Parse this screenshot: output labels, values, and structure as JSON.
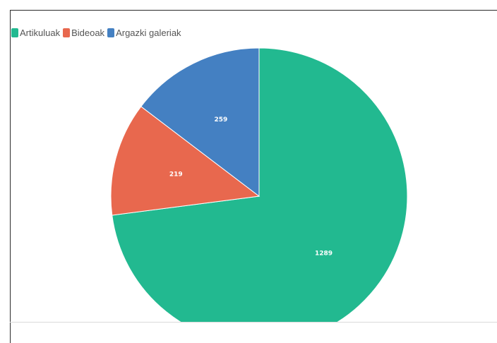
{
  "colors": {
    "artikuluak": "#22b990",
    "bideoak": "#e8684e",
    "argazki_galeriak": "#4480c2"
  },
  "chart_data": {
    "type": "pie",
    "title": "",
    "legend_position": "top-left",
    "slices": [
      {
        "name": "Artikuluak",
        "value": 1289,
        "color": "#22b990"
      },
      {
        "name": "Bideoak",
        "value": 219,
        "color": "#e8684e"
      },
      {
        "name": "Argazki galeriak",
        "value": 259,
        "color": "#4480c2"
      }
    ]
  }
}
